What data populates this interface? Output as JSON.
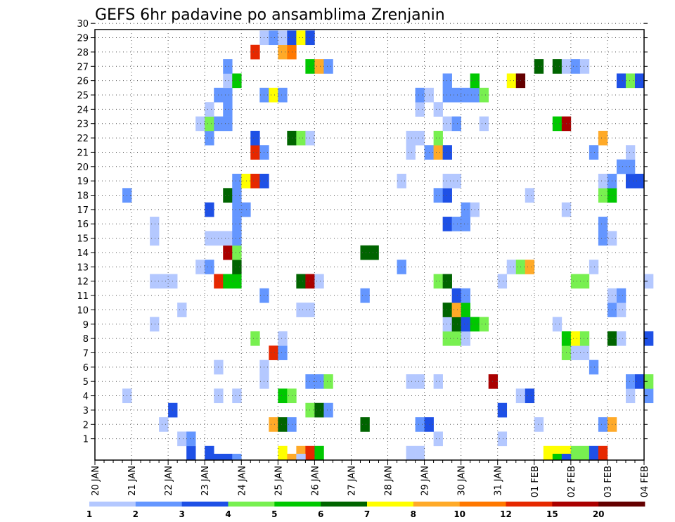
{
  "chart_data": {
    "type": "heatmap",
    "title": "GEFS 6hr padavine po ansamblima Zrenjanin",
    "xlabel": "",
    "ylabel": "",
    "x_ticks": [
      "20 JAN",
      "21 JAN",
      "22 JAN",
      "23 JAN",
      "24 JAN",
      "25 JAN",
      "26 JAN",
      "27 JAN",
      "28 JAN",
      "29 JAN",
      "30 JAN",
      "31 JAN",
      "01 FEB",
      "02 FEB",
      "03 FEB",
      "04 FEB"
    ],
    "y_ticks": [
      1,
      2,
      3,
      4,
      5,
      6,
      7,
      8,
      9,
      10,
      11,
      12,
      13,
      14,
      15,
      16,
      17,
      18,
      19,
      20,
      21,
      22,
      23,
      24,
      25,
      26,
      27,
      28,
      29,
      30
    ],
    "grid": true,
    "legend_boundaries": [
      1,
      2,
      3,
      4,
      5,
      6,
      7,
      8,
      10,
      12,
      15,
      20
    ],
    "legend_labels": [
      "1",
      "2",
      "3",
      "4",
      "5",
      "6",
      "7",
      "8",
      "10",
      "12",
      "15",
      "20"
    ],
    "colors": [
      "#b4c8ff",
      "#6496ff",
      "#1e50e6",
      "#78f050",
      "#00c800",
      "#006400",
      "#ffff00",
      "#ffaa28",
      "#ff7800",
      "#e62800",
      "#aa0000",
      "#640000"
    ],
    "cells": [
      [
        22.5,
        0,
        3
      ],
      [
        23,
        0,
        3
      ],
      [
        25,
        0,
        7
      ],
      [
        25.5,
        0,
        8
      ],
      [
        25.75,
        0,
        10
      ],
      [
        26,
        0,
        5
      ],
      [
        28.5,
        0,
        1
      ],
      [
        28.75,
        0,
        1
      ],
      [
        32.25,
        0,
        7
      ],
      [
        32.5,
        0,
        7
      ],
      [
        32.75,
        0,
        7
      ],
      [
        33,
        0,
        4
      ],
      [
        33.25,
        0,
        4
      ],
      [
        33.5,
        0,
        3
      ],
      [
        33.75,
        0,
        10
      ],
      [
        22.25,
        1,
        1
      ],
      [
        22.5,
        1,
        2
      ],
      [
        29.25,
        1,
        1
      ],
      [
        31,
        1,
        1
      ],
      [
        21.75,
        2,
        1
      ],
      [
        24.75,
        2,
        8
      ],
      [
        25,
        2,
        6
      ],
      [
        25.25,
        2,
        2
      ],
      [
        28.75,
        2,
        2
      ],
      [
        29,
        2,
        3
      ],
      [
        27.25,
        2,
        6
      ],
      [
        32,
        2,
        1
      ],
      [
        33.75,
        2,
        2
      ],
      [
        34,
        2,
        8
      ],
      [
        22,
        3,
        3
      ],
      [
        25.75,
        3,
        4
      ],
      [
        26,
        3,
        6
      ],
      [
        26.25,
        3,
        2
      ],
      [
        31,
        3,
        3
      ],
      [
        20.75,
        4,
        1
      ],
      [
        23.25,
        4,
        1
      ],
      [
        23.75,
        4,
        1
      ],
      [
        25,
        4,
        5
      ],
      [
        25.25,
        4,
        4
      ],
      [
        31.5,
        4,
        1
      ],
      [
        31.75,
        4,
        3
      ],
      [
        34.5,
        4,
        1
      ],
      [
        35,
        4,
        2
      ],
      [
        24.5,
        5,
        1
      ],
      [
        25.75,
        5,
        2
      ],
      [
        26,
        5,
        2
      ],
      [
        26.25,
        5,
        4
      ],
      [
        28.5,
        5,
        1
      ],
      [
        28.75,
        5,
        1
      ],
      [
        29.25,
        5,
        1
      ],
      [
        30.75,
        5,
        11
      ],
      [
        34.5,
        5,
        2
      ],
      [
        34.75,
        5,
        3
      ],
      [
        35,
        5,
        4
      ],
      [
        23.25,
        6,
        1
      ],
      [
        24.5,
        6,
        1
      ],
      [
        33.5,
        6,
        2
      ],
      [
        24.75,
        7,
        10
      ],
      [
        25,
        7,
        2
      ],
      [
        32.75,
        7,
        4
      ],
      [
        33,
        7,
        1
      ],
      [
        33.25,
        7,
        1
      ],
      [
        24.25,
        8,
        4
      ],
      [
        25,
        8,
        1
      ],
      [
        29.5,
        8,
        4
      ],
      [
        29.75,
        8,
        4
      ],
      [
        30,
        8,
        1
      ],
      [
        32.75,
        8,
        5
      ],
      [
        33,
        8,
        7
      ],
      [
        33.25,
        8,
        4
      ],
      [
        34,
        8,
        6
      ],
      [
        34.25,
        8,
        1
      ],
      [
        35,
        8,
        3
      ],
      [
        21.5,
        9,
        1
      ],
      [
        29.5,
        9,
        1
      ],
      [
        29.75,
        9,
        6
      ],
      [
        30,
        9,
        3
      ],
      [
        30.25,
        9,
        5
      ],
      [
        30.5,
        9,
        4
      ],
      [
        32.5,
        9,
        1
      ],
      [
        22.25,
        10,
        1
      ],
      [
        25.5,
        10,
        1
      ],
      [
        25.75,
        10,
        1
      ],
      [
        29.5,
        10,
        6
      ],
      [
        29.75,
        10,
        8
      ],
      [
        30,
        10,
        5
      ],
      [
        34,
        10,
        2
      ],
      [
        34.25,
        10,
        1
      ],
      [
        24.5,
        11,
        2
      ],
      [
        27.25,
        11,
        2
      ],
      [
        29.75,
        11,
        3
      ],
      [
        30,
        11,
        2
      ],
      [
        34,
        11,
        1
      ],
      [
        34.25,
        11,
        2
      ],
      [
        21.5,
        12,
        1
      ],
      [
        21.75,
        12,
        1
      ],
      [
        22,
        12,
        1
      ],
      [
        23.25,
        12,
        10
      ],
      [
        23.5,
        12,
        5
      ],
      [
        23.75,
        12,
        5
      ],
      [
        25.5,
        12,
        6
      ],
      [
        25.75,
        12,
        11
      ],
      [
        26,
        12,
        1
      ],
      [
        29.25,
        12,
        4
      ],
      [
        29.5,
        12,
        6
      ],
      [
        31,
        12,
        1
      ],
      [
        33,
        12,
        4
      ],
      [
        33.25,
        12,
        4
      ],
      [
        35,
        12,
        1
      ],
      [
        22.75,
        13,
        1
      ],
      [
        23,
        13,
        2
      ],
      [
        23.75,
        13,
        6
      ],
      [
        28.25,
        13,
        2
      ],
      [
        31.25,
        13,
        1
      ],
      [
        31.5,
        13,
        4
      ],
      [
        31.75,
        13,
        8
      ],
      [
        33.5,
        13,
        1
      ],
      [
        23.5,
        14,
        11
      ],
      [
        23.75,
        14,
        4
      ],
      [
        27.25,
        14,
        6
      ],
      [
        27.5,
        14,
        6
      ],
      [
        21.5,
        15,
        1
      ],
      [
        23,
        15,
        1
      ],
      [
        23.25,
        15,
        1
      ],
      [
        23.5,
        15,
        1
      ],
      [
        23.75,
        15,
        2
      ],
      [
        33.75,
        15,
        2
      ],
      [
        34,
        15,
        1
      ],
      [
        21.5,
        16,
        1
      ],
      [
        23.75,
        16,
        2
      ],
      [
        29.5,
        16,
        3
      ],
      [
        29.75,
        16,
        2
      ],
      [
        30,
        16,
        2
      ],
      [
        33.75,
        16,
        2
      ],
      [
        23,
        17,
        3
      ],
      [
        23.75,
        17,
        2
      ],
      [
        24,
        17,
        2
      ],
      [
        30,
        17,
        2
      ],
      [
        30.25,
        17,
        1
      ],
      [
        32.75,
        17,
        1
      ],
      [
        20.75,
        18,
        2
      ],
      [
        23.5,
        18,
        6
      ],
      [
        23.75,
        18,
        2
      ],
      [
        29.25,
        18,
        2
      ],
      [
        29.5,
        18,
        3
      ],
      [
        31.75,
        18,
        1
      ],
      [
        33.75,
        18,
        4
      ],
      [
        34,
        18,
        5
      ],
      [
        23.75,
        19,
        2
      ],
      [
        24,
        19,
        7
      ],
      [
        24.25,
        19,
        10
      ],
      [
        24.5,
        19,
        3
      ],
      [
        28.25,
        19,
        1
      ],
      [
        29.5,
        19,
        1
      ],
      [
        29.75,
        19,
        1
      ],
      [
        33.75,
        19,
        1
      ],
      [
        34,
        19,
        2
      ],
      [
        34.5,
        19,
        3
      ],
      [
        34.75,
        19,
        3
      ],
      [
        34.25,
        20,
        2
      ],
      [
        34.5,
        20,
        2
      ],
      [
        24.25,
        21,
        10
      ],
      [
        24.5,
        21,
        2
      ],
      [
        28.5,
        21,
        1
      ],
      [
        29,
        21,
        2
      ],
      [
        29.25,
        21,
        8
      ],
      [
        29.5,
        21,
        3
      ],
      [
        33.5,
        21,
        2
      ],
      [
        34.5,
        21,
        1
      ],
      [
        23,
        22,
        2
      ],
      [
        24.25,
        22,
        3
      ],
      [
        25.25,
        22,
        6
      ],
      [
        25.5,
        22,
        4
      ],
      [
        25.75,
        22,
        1
      ],
      [
        28.5,
        22,
        1
      ],
      [
        28.75,
        22,
        1
      ],
      [
        29.25,
        22,
        4
      ],
      [
        33.75,
        22,
        8
      ],
      [
        22.75,
        23,
        1
      ],
      [
        23,
        23,
        4
      ],
      [
        23.25,
        23,
        2
      ],
      [
        23.5,
        23,
        2
      ],
      [
        29.5,
        23,
        1
      ],
      [
        29.75,
        23,
        2
      ],
      [
        30.5,
        23,
        1
      ],
      [
        32.5,
        23,
        5
      ],
      [
        32.75,
        23,
        11
      ],
      [
        23,
        24,
        1
      ],
      [
        23.5,
        24,
        2
      ],
      [
        28.75,
        24,
        1
      ],
      [
        29.25,
        24,
        1
      ],
      [
        23.25,
        25,
        2
      ],
      [
        23.5,
        25,
        2
      ],
      [
        24.5,
        25,
        2
      ],
      [
        24.75,
        25,
        7
      ],
      [
        25,
        25,
        2
      ],
      [
        28.75,
        25,
        2
      ],
      [
        29,
        25,
        1
      ],
      [
        29.5,
        25,
        2
      ],
      [
        29.75,
        25,
        2
      ],
      [
        30,
        25,
        2
      ],
      [
        30.25,
        25,
        2
      ],
      [
        30.5,
        25,
        4
      ],
      [
        23.5,
        26,
        1
      ],
      [
        23.75,
        26,
        5
      ],
      [
        29.5,
        26,
        2
      ],
      [
        30.25,
        26,
        5
      ],
      [
        31.25,
        26,
        7
      ],
      [
        31.5,
        26,
        12
      ],
      [
        34.25,
        26,
        3
      ],
      [
        34.5,
        26,
        4
      ],
      [
        34.75,
        26,
        3
      ],
      [
        23.5,
        27,
        2
      ],
      [
        25.75,
        27,
        5
      ],
      [
        26,
        27,
        8
      ],
      [
        26.25,
        27,
        2
      ],
      [
        32,
        27,
        6
      ],
      [
        32.5,
        27,
        6
      ],
      [
        32.75,
        27,
        1
      ],
      [
        33,
        27,
        2
      ],
      [
        33.25,
        27,
        1
      ],
      [
        24.25,
        28,
        10
      ],
      [
        25,
        28,
        8
      ],
      [
        25.25,
        28,
        9
      ],
      [
        24.5,
        29,
        1
      ],
      [
        24.75,
        29,
        2
      ],
      [
        25,
        29,
        1
      ],
      [
        25.25,
        29,
        3
      ],
      [
        25.5,
        29,
        7
      ],
      [
        25.75,
        29,
        3
      ]
    ],
    "offgrid_cells": [
      [
        23.25,
        0,
        3
      ],
      [
        23.5,
        0,
        3
      ],
      [
        23.75,
        0,
        2
      ],
      [
        25,
        0,
        7
      ],
      [
        25.25,
        0,
        8
      ],
      [
        25.5,
        0,
        1
      ],
      [
        32.5,
        0,
        5
      ],
      [
        32.75,
        0,
        3
      ]
    ]
  }
}
